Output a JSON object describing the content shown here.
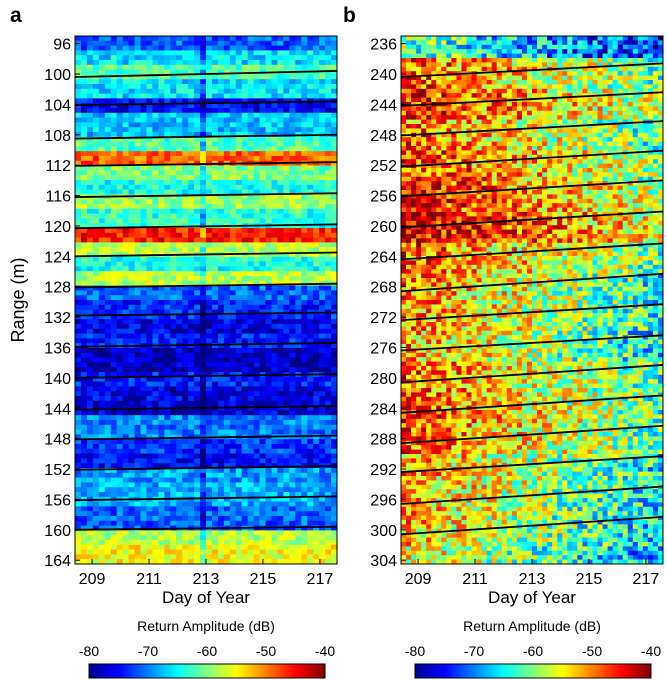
{
  "chart_data": [
    {
      "type": "heatmap",
      "panel_label": "a",
      "x_ticks": [
        "209",
        "211",
        "213",
        "215",
        "217"
      ],
      "x_tick_values": [
        209,
        211,
        213,
        215,
        217
      ],
      "xlim": [
        208.4,
        217.6
      ],
      "xlabel": "Day of Year",
      "ylabel": "Range (m)",
      "y_ticks": [
        "96",
        "100",
        "104",
        "108",
        "112",
        "116",
        "120",
        "124",
        "128",
        "132",
        "136",
        "140",
        "144",
        "148",
        "152",
        "156",
        "160",
        "164"
      ],
      "y_tick_values": [
        96,
        100,
        104,
        108,
        112,
        116,
        120,
        124,
        128,
        132,
        136,
        140,
        144,
        148,
        152,
        156,
        160,
        164
      ],
      "ylim": [
        95,
        164.5
      ],
      "y_reversed": true,
      "overlay_lines": [
        {
          "start": [
            208.4,
            100.4
          ],
          "end": [
            217.6,
            99.6
          ]
        },
        {
          "start": [
            208.4,
            104.1
          ],
          "end": [
            217.6,
            103.6
          ]
        },
        {
          "start": [
            208.4,
            108.5
          ],
          "end": [
            217.6,
            108.0
          ]
        },
        {
          "start": [
            208.4,
            112.1
          ],
          "end": [
            217.6,
            111.6
          ]
        },
        {
          "start": [
            208.4,
            116.2
          ],
          "end": [
            217.6,
            115.7
          ]
        },
        {
          "start": [
            208.4,
            120.3
          ],
          "end": [
            217.6,
            119.8
          ]
        },
        {
          "start": [
            208.4,
            124.0
          ],
          "end": [
            217.6,
            123.5
          ]
        },
        {
          "start": [
            208.4,
            128.1
          ],
          "end": [
            217.6,
            127.6
          ]
        },
        {
          "start": [
            208.4,
            131.8
          ],
          "end": [
            217.6,
            131.4
          ]
        },
        {
          "start": [
            208.4,
            135.9
          ],
          "end": [
            217.6,
            135.4
          ]
        },
        {
          "start": [
            208.4,
            140.0
          ],
          "end": [
            217.6,
            139.5
          ]
        },
        {
          "start": [
            208.4,
            144.2
          ],
          "end": [
            217.6,
            143.7
          ]
        },
        {
          "start": [
            208.4,
            148.1
          ],
          "end": [
            217.6,
            147.6
          ]
        },
        {
          "start": [
            208.4,
            152.1
          ],
          "end": [
            217.6,
            151.6
          ]
        },
        {
          "start": [
            208.4,
            156.1
          ],
          "end": [
            217.6,
            155.6
          ]
        },
        {
          "start": [
            208.4,
            160.0
          ],
          "end": [
            217.6,
            159.6
          ]
        }
      ],
      "intensity_bands": [
        [
          95,
          97,
          0.22
        ],
        [
          97,
          99,
          0.35
        ],
        [
          99,
          101,
          0.45
        ],
        [
          101,
          103,
          0.35
        ],
        [
          103,
          105,
          0.12
        ],
        [
          105,
          108,
          0.32
        ],
        [
          108,
          110,
          0.45
        ],
        [
          110,
          112,
          0.78
        ],
        [
          112,
          114,
          0.5
        ],
        [
          114,
          116,
          0.4
        ],
        [
          116,
          118,
          0.52
        ],
        [
          118,
          120,
          0.42
        ],
        [
          120,
          122,
          0.85
        ],
        [
          122,
          124,
          0.55
        ],
        [
          124,
          126,
          0.4
        ],
        [
          126,
          128,
          0.55
        ],
        [
          128,
          130,
          0.22
        ],
        [
          130,
          132,
          0.16
        ],
        [
          132,
          134,
          0.1
        ],
        [
          134,
          136,
          0.15
        ],
        [
          136,
          139,
          0.06
        ],
        [
          139,
          141,
          0.15
        ],
        [
          141,
          143,
          0.1
        ],
        [
          143,
          145,
          0.08
        ],
        [
          145,
          148,
          0.25
        ],
        [
          148,
          150,
          0.18
        ],
        [
          150,
          152,
          0.12
        ],
        [
          152,
          154,
          0.28
        ],
        [
          154,
          157,
          0.3
        ],
        [
          157,
          160,
          0.22
        ],
        [
          160,
          162,
          0.55
        ],
        [
          162,
          164.5,
          0.62
        ]
      ],
      "colorbar": {
        "label": "Return Amplitude (dB)",
        "ticks": [
          "-80",
          "-70",
          "-60",
          "-50",
          "-40"
        ],
        "range": [
          -80,
          -40
        ],
        "colormap": "jet"
      }
    },
    {
      "type": "heatmap",
      "panel_label": "b",
      "x_ticks": [
        "209",
        "211",
        "213",
        "215",
        "217"
      ],
      "x_tick_values": [
        209,
        211,
        213,
        215,
        217
      ],
      "xlim": [
        208.4,
        217.6
      ],
      "xlabel": "Day of Year",
      "y_ticks": [
        "236",
        "240",
        "244",
        "248",
        "252",
        "256",
        "260",
        "264",
        "268",
        "272",
        "276",
        "280",
        "284",
        "288",
        "292",
        "296",
        "300",
        "304"
      ],
      "y_tick_values": [
        236,
        240,
        244,
        248,
        252,
        256,
        260,
        264,
        268,
        272,
        276,
        280,
        284,
        288,
        292,
        296,
        300,
        304
      ],
      "ylim": [
        235,
        304.5
      ],
      "y_reversed": true,
      "overlay_lines": [
        {
          "start": [
            208.4,
            240.4
          ],
          "end": [
            217.6,
            238.6
          ]
        },
        {
          "start": [
            208.4,
            244.2
          ],
          "end": [
            217.6,
            242.4
          ]
        },
        {
          "start": [
            208.4,
            248.1
          ],
          "end": [
            217.6,
            246.2
          ]
        },
        {
          "start": [
            208.4,
            252.2
          ],
          "end": [
            217.6,
            250.1
          ]
        },
        {
          "start": [
            208.4,
            256.1
          ],
          "end": [
            217.6,
            254.0
          ]
        },
        {
          "start": [
            208.4,
            260.2
          ],
          "end": [
            217.6,
            258.1
          ]
        },
        {
          "start": [
            208.4,
            264.4
          ],
          "end": [
            217.6,
            262.3
          ]
        },
        {
          "start": [
            208.4,
            268.6
          ],
          "end": [
            217.6,
            266.3
          ]
        },
        {
          "start": [
            208.4,
            272.4
          ],
          "end": [
            217.6,
            270.3
          ]
        },
        {
          "start": [
            208.4,
            276.4
          ],
          "end": [
            217.6,
            274.4
          ]
        },
        {
          "start": [
            208.4,
            280.6
          ],
          "end": [
            217.6,
            278.3
          ]
        },
        {
          "start": [
            208.4,
            284.6
          ],
          "end": [
            217.6,
            282.3
          ]
        },
        {
          "start": [
            208.4,
            288.6
          ],
          "end": [
            217.6,
            286.3
          ]
        },
        {
          "start": [
            208.4,
            292.4
          ],
          "end": [
            217.6,
            290.3
          ]
        },
        {
          "start": [
            208.4,
            296.6
          ],
          "end": [
            217.6,
            294.3
          ]
        },
        {
          "start": [
            208.4,
            300.6
          ],
          "end": [
            217.6,
            298.3
          ]
        }
      ],
      "intensity_bands": [
        [
          235,
          238,
          0.4
        ],
        [
          238,
          242,
          0.72
        ],
        [
          242,
          246,
          0.78
        ],
        [
          246,
          250,
          0.7
        ],
        [
          250,
          254,
          0.75
        ],
        [
          254,
          258,
          0.8
        ],
        [
          258,
          262,
          0.85
        ],
        [
          262,
          266,
          0.72
        ],
        [
          266,
          270,
          0.66
        ],
        [
          270,
          274,
          0.66
        ],
        [
          274,
          278,
          0.62
        ],
        [
          278,
          282,
          0.7
        ],
        [
          282,
          286,
          0.72
        ],
        [
          286,
          290,
          0.7
        ],
        [
          290,
          294,
          0.64
        ],
        [
          294,
          298,
          0.62
        ],
        [
          298,
          302,
          0.6
        ],
        [
          302,
          304.5,
          0.55
        ]
      ],
      "colorbar": {
        "label": "Return Amplitude (dB)",
        "ticks": [
          "-80",
          "-70",
          "-60",
          "-50",
          "-40"
        ],
        "range": [
          -80,
          -40
        ],
        "colormap": "jet"
      }
    }
  ]
}
